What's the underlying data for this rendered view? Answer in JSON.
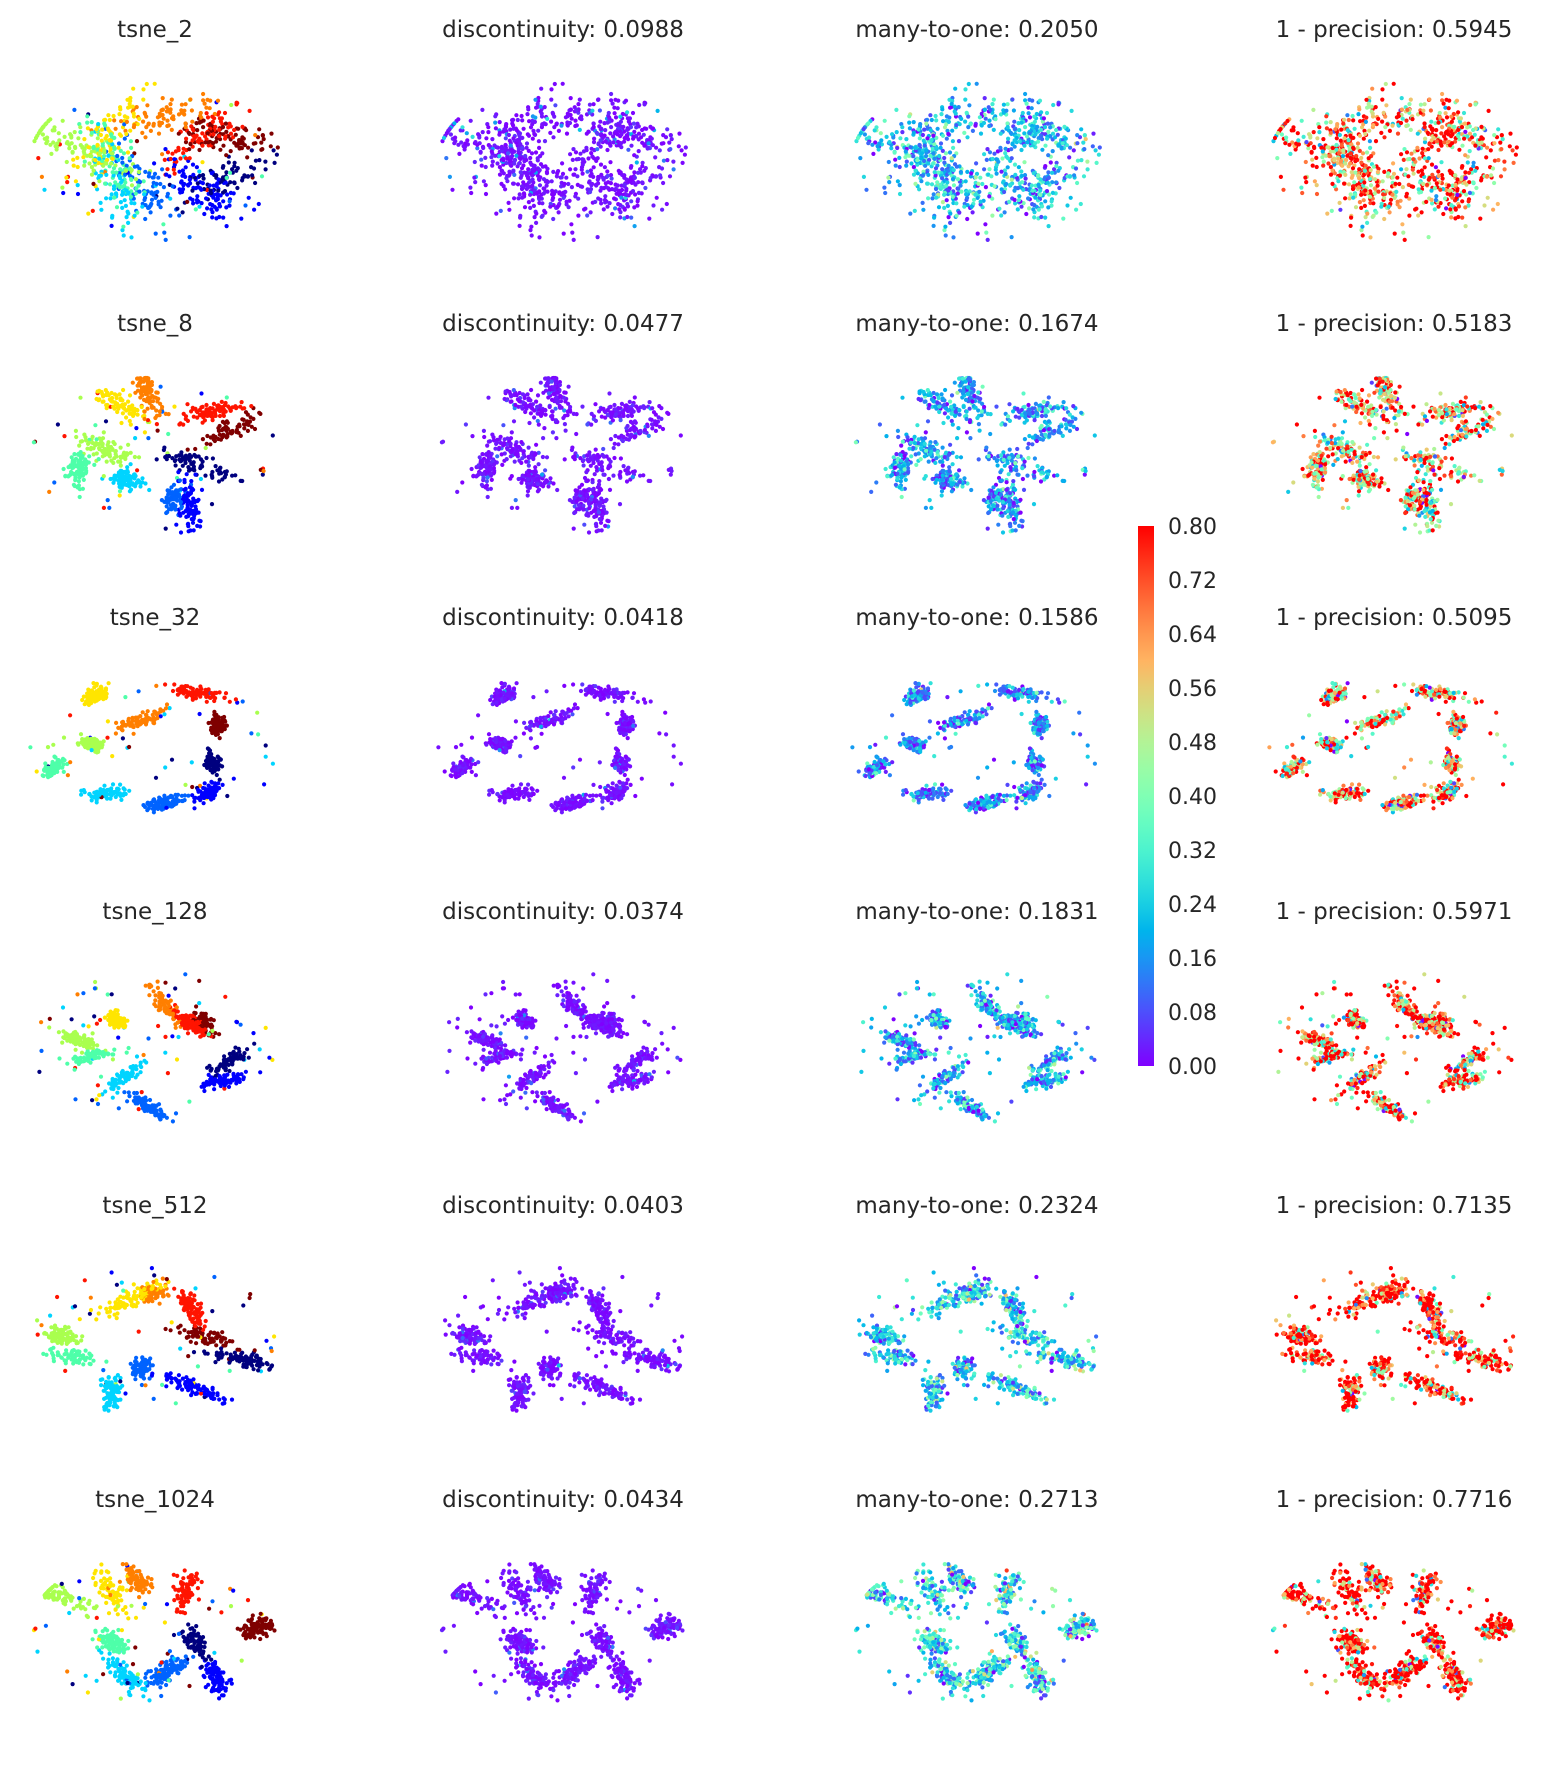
{
  "chart_data": {
    "type": "scatter",
    "description_free": true,
    "rows": [
      {
        "label": "tsne_2",
        "discontinuity": "0.0988",
        "many_to_one": "0.2050",
        "one_minus_precision": "0.5945",
        "mean_values": [
          0.0988,
          0.205,
          0.5945
        ]
      },
      {
        "label": "tsne_8",
        "discontinuity": "0.0477",
        "many_to_one": "0.1674",
        "one_minus_precision": "0.5183",
        "mean_values": [
          0.0477,
          0.1674,
          0.5183
        ]
      },
      {
        "label": "tsne_32",
        "discontinuity": "0.0418",
        "many_to_one": "0.1586",
        "one_minus_precision": "0.5095",
        "mean_values": [
          0.0418,
          0.1586,
          0.5095
        ]
      },
      {
        "label": "tsne_128",
        "discontinuity": "0.0374",
        "many_to_one": "0.1831",
        "one_minus_precision": "0.5971",
        "mean_values": [
          0.0374,
          0.1831,
          0.5971
        ]
      },
      {
        "label": "tsne_512",
        "discontinuity": "0.0403",
        "many_to_one": "0.2324",
        "one_minus_precision": "0.7135",
        "mean_values": [
          0.0403,
          0.2324,
          0.7135
        ]
      },
      {
        "label": "tsne_1024",
        "discontinuity": "0.0434",
        "many_to_one": "0.2713",
        "one_minus_precision": "0.7716",
        "mean_values": [
          0.0434,
          0.2713,
          0.7716
        ]
      }
    ],
    "column_titles": [
      "",
      "discontinuity: ",
      "many-to-one: ",
      "1 - precision: "
    ],
    "colorbar": {
      "range": [
        0.0,
        0.8
      ],
      "ticks": [
        "0.80",
        "0.72",
        "0.64",
        "0.56",
        "0.48",
        "0.40",
        "0.32",
        "0.24",
        "0.16",
        "0.08",
        "0.00"
      ],
      "colormap": "rainbow"
    },
    "cluster_colors": [
      "#00007f",
      "#0000ff",
      "#0063ff",
      "#00d4ff",
      "#4effa9",
      "#a9ff4e",
      "#ffe500",
      "#ff7f00",
      "#ff1400",
      "#7f0000"
    ]
  }
}
